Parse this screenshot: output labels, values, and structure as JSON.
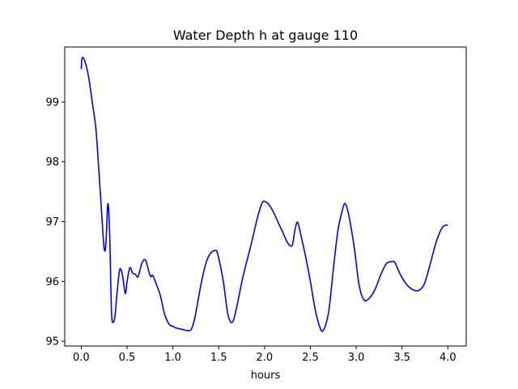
{
  "chart_data": {
    "type": "line",
    "title": "Water Depth h at gauge 110",
    "xlabel": "hours",
    "ylabel": "",
    "xlim": [
      -0.18,
      4.2
    ],
    "ylim": [
      94.92,
      99.92
    ],
    "x_ticks": [
      0.0,
      0.5,
      1.0,
      1.5,
      2.0,
      2.5,
      3.0,
      3.5,
      4.0
    ],
    "x_tick_labels": [
      "0.0",
      "0.5",
      "1.0",
      "1.5",
      "2.0",
      "2.5",
      "3.0",
      "3.5",
      "4.0"
    ],
    "y_ticks": [
      95,
      96,
      97,
      98,
      99
    ],
    "y_tick_labels": [
      "95",
      "96",
      "97",
      "98",
      "99"
    ],
    "grid": false,
    "line_color": "#0000ff",
    "series": [
      {
        "x": [
          0.0,
          0.01,
          0.04,
          0.08,
          0.12,
          0.16,
          0.19,
          0.22,
          0.25,
          0.27,
          0.29,
          0.31,
          0.33,
          0.35,
          0.37,
          0.39,
          0.42,
          0.45,
          0.48,
          0.5,
          0.53,
          0.56,
          0.59,
          0.62,
          0.66,
          0.7,
          0.74,
          0.76,
          0.78,
          0.82,
          0.86,
          0.88,
          0.91,
          0.96,
          1.0,
          1.04,
          1.1,
          1.15,
          1.2,
          1.24,
          1.3,
          1.35,
          1.4,
          1.46,
          1.49,
          1.55,
          1.6,
          1.65,
          1.7,
          1.76,
          1.85,
          1.92,
          1.97,
          2.0,
          2.05,
          2.1,
          2.15,
          2.2,
          2.25,
          2.3,
          2.33,
          2.36,
          2.4,
          2.45,
          2.5,
          2.55,
          2.6,
          2.64,
          2.7,
          2.75,
          2.8,
          2.85,
          2.88,
          2.92,
          2.98,
          3.03,
          3.08,
          3.13,
          3.2,
          3.27,
          3.33,
          3.38,
          3.42,
          3.48,
          3.55,
          3.62,
          3.68,
          3.74,
          3.8,
          3.87,
          3.93,
          3.97,
          4.0
        ],
        "y": [
          99.55,
          99.74,
          99.68,
          99.42,
          99.0,
          98.55,
          97.9,
          97.2,
          96.55,
          96.65,
          97.3,
          96.8,
          95.5,
          95.32,
          95.45,
          95.8,
          96.2,
          96.1,
          95.8,
          96.0,
          96.23,
          96.14,
          96.12,
          96.08,
          96.3,
          96.36,
          96.15,
          96.08,
          96.1,
          95.95,
          95.78,
          95.65,
          95.45,
          95.28,
          95.25,
          95.22,
          95.2,
          95.18,
          95.2,
          95.4,
          95.9,
          96.25,
          96.45,
          96.52,
          96.45,
          96.0,
          95.45,
          95.32,
          95.6,
          96.05,
          96.6,
          97.05,
          97.3,
          97.34,
          97.28,
          97.15,
          96.98,
          96.82,
          96.65,
          96.6,
          96.85,
          96.99,
          96.75,
          96.4,
          96.0,
          95.55,
          95.25,
          95.18,
          95.5,
          96.2,
          96.85,
          97.2,
          97.3,
          97.1,
          96.55,
          95.95,
          95.7,
          95.7,
          95.85,
          96.12,
          96.3,
          96.33,
          96.32,
          96.12,
          95.95,
          95.86,
          95.85,
          95.95,
          96.25,
          96.65,
          96.88,
          96.94,
          96.94
        ]
      }
    ]
  }
}
